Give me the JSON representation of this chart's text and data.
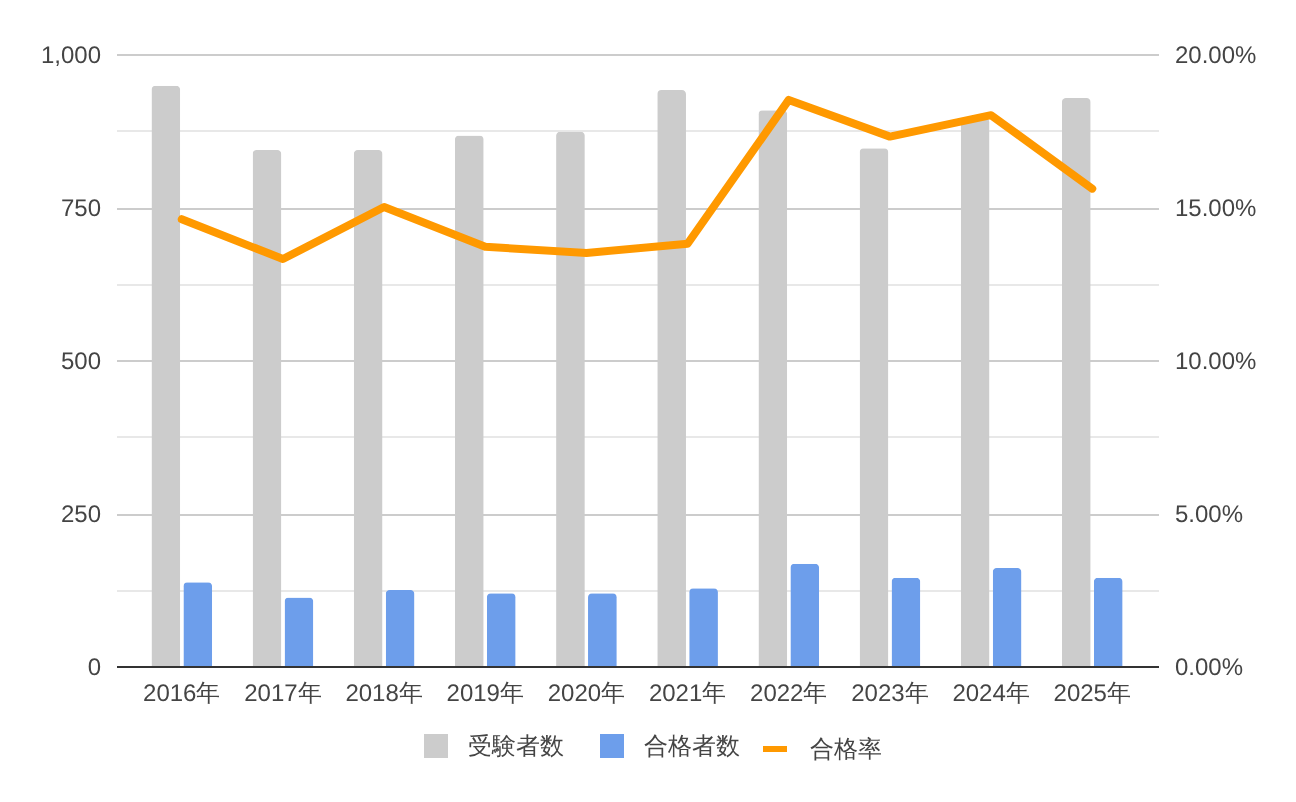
{
  "chart_data": {
    "type": "bar",
    "categories": [
      "2016年",
      "2017年",
      "2018年",
      "2019年",
      "2020年",
      "2021年",
      "2022年",
      "2023年",
      "2024年",
      "2025年"
    ],
    "series": [
      {
        "name": "受験者数",
        "color": "#cccccc",
        "values": [
          948,
          843,
          843,
          867,
          873,
          941,
          908,
          846,
          895,
          928
        ]
      },
      {
        "name": "合格者数",
        "color": "#6d9eeb",
        "values": [
          137,
          112,
          124,
          119,
          119,
          127,
          167,
          144,
          160,
          144
        ]
      },
      {
        "name": "合格率",
        "type": "line",
        "axis": "y2",
        "color": "#ff9900",
        "values": [
          14.6,
          13.3,
          15.0,
          13.7,
          13.5,
          13.8,
          18.5,
          17.3,
          18.0,
          15.6
        ]
      }
    ],
    "ylim": [
      0,
      1000
    ],
    "yticks": [
      0,
      {
        "value": 125,
        "label": null
      },
      250,
      {
        "value": 375,
        "label": null
      },
      500,
      {
        "value": 625,
        "label": null
      },
      750,
      {
        "value": 875,
        "label": null
      },
      {
        "value": 1000,
        "label": "1,000"
      }
    ],
    "y2lim": [
      0,
      20
    ],
    "y2ticks": [
      {
        "value": 0,
        "label": "0.00%"
      },
      {
        "value": 5,
        "label": "5.00%"
      },
      {
        "value": 10,
        "label": "10.00%"
      },
      {
        "value": 15,
        "label": "15.00%"
      },
      {
        "value": 20,
        "label": "20.00%"
      }
    ],
    "grid": "y",
    "legend": "bottom"
  }
}
